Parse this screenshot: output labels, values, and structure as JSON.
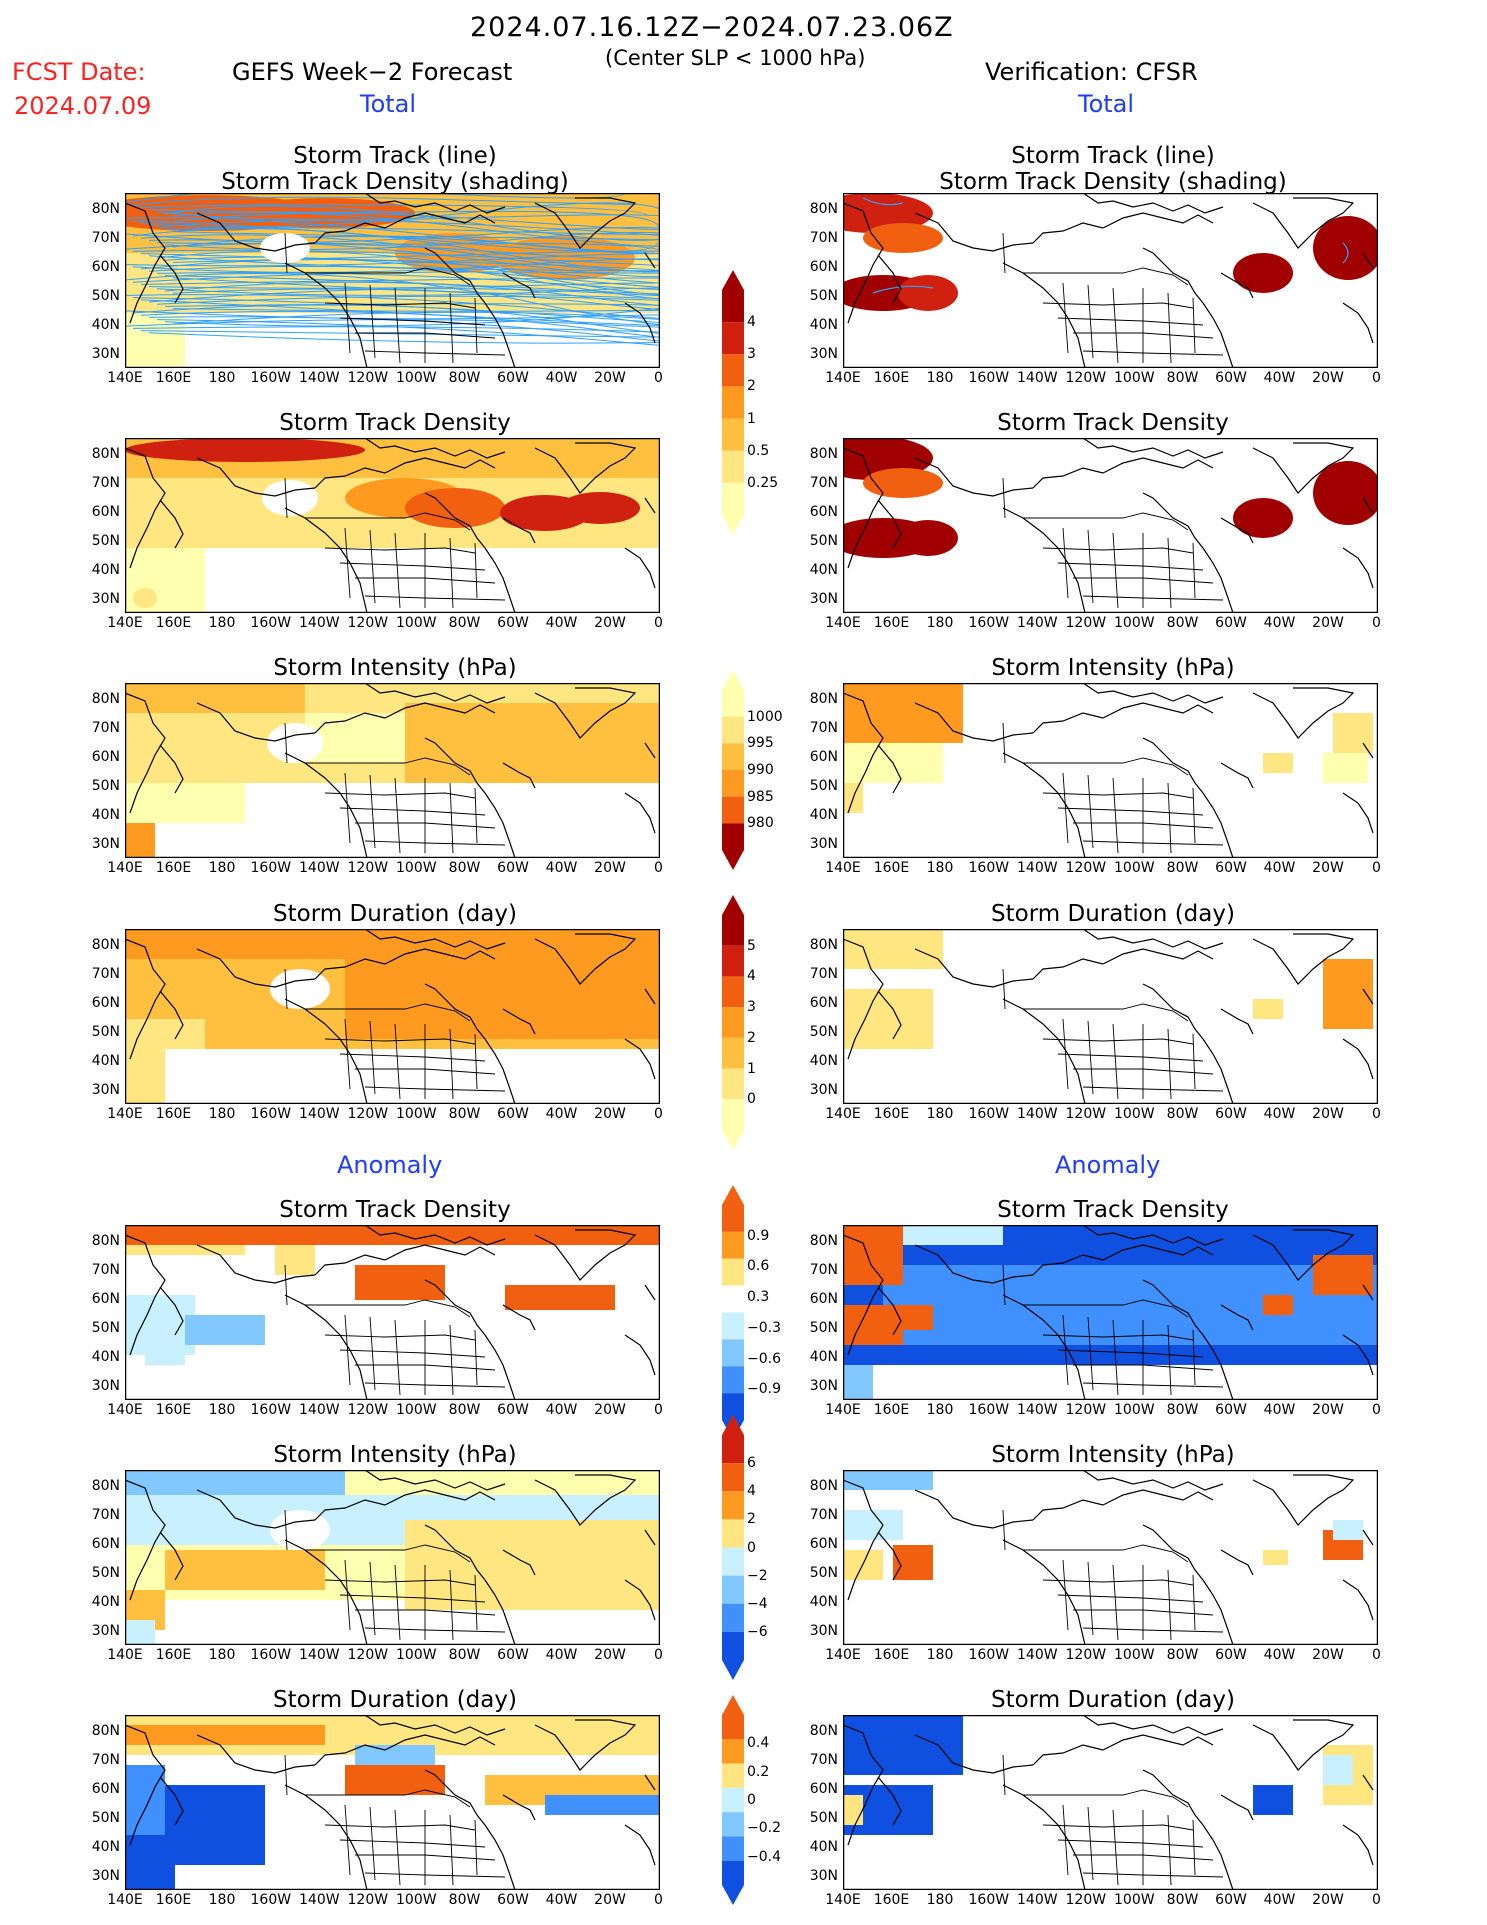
{
  "header": {
    "date_range": "2024.07.16.12Z−2024.07.23.06Z",
    "criterion": "(Center SLP < 1000 hPa)",
    "fcst_label": "FCST Date:",
    "fcst_date": "2024.07.09",
    "left_title": "GEFS Week−2 Forecast",
    "right_title": "Verification: CFSR",
    "total_label": "Total",
    "anomaly_label": "Anomaly"
  },
  "panel_titles": {
    "track_line1": "Storm Track (line)",
    "track_line2": "Storm Track Density (shading)",
    "density": "Storm Track Density",
    "intensity": "Storm Intensity (hPa)",
    "duration": "Storm Duration (day)"
  },
  "axes": {
    "lat_ticks": [
      "80N",
      "70N",
      "60N",
      "50N",
      "40N",
      "30N"
    ],
    "lon_ticks": [
      "140E",
      "160E",
      "180",
      "160W",
      "140W",
      "120W",
      "100W",
      "80W",
      "60W",
      "40W",
      "20W",
      "0"
    ]
  },
  "colorbars": {
    "density_total": [
      "4",
      "3",
      "2",
      "1",
      "0.5",
      "0.25"
    ],
    "intensity_total": [
      "1000",
      "995",
      "990",
      "985",
      "980"
    ],
    "duration_total": [
      "5",
      "4",
      "3",
      "2",
      "1",
      "0"
    ],
    "density_anom": [
      "0.9",
      "0.6",
      "0.3",
      "−0.3",
      "−0.6",
      "−0.9"
    ],
    "intensity_anom": [
      "6",
      "4",
      "2",
      "0",
      "−2",
      "−4",
      "−6"
    ],
    "duration_anom": [
      "0.4",
      "0.2",
      "0",
      "−0.2",
      "−0.4"
    ]
  },
  "colors": {
    "warm": [
      "#ffffb0",
      "#ffe680",
      "#ffc040",
      "#ff9a20",
      "#f06010",
      "#d02010",
      "#a00000"
    ],
    "cool": [
      "#c8f0ff",
      "#80c8ff",
      "#4090ff",
      "#1050e0"
    ],
    "track": "#30a0ff",
    "map_line": "#000000"
  }
}
